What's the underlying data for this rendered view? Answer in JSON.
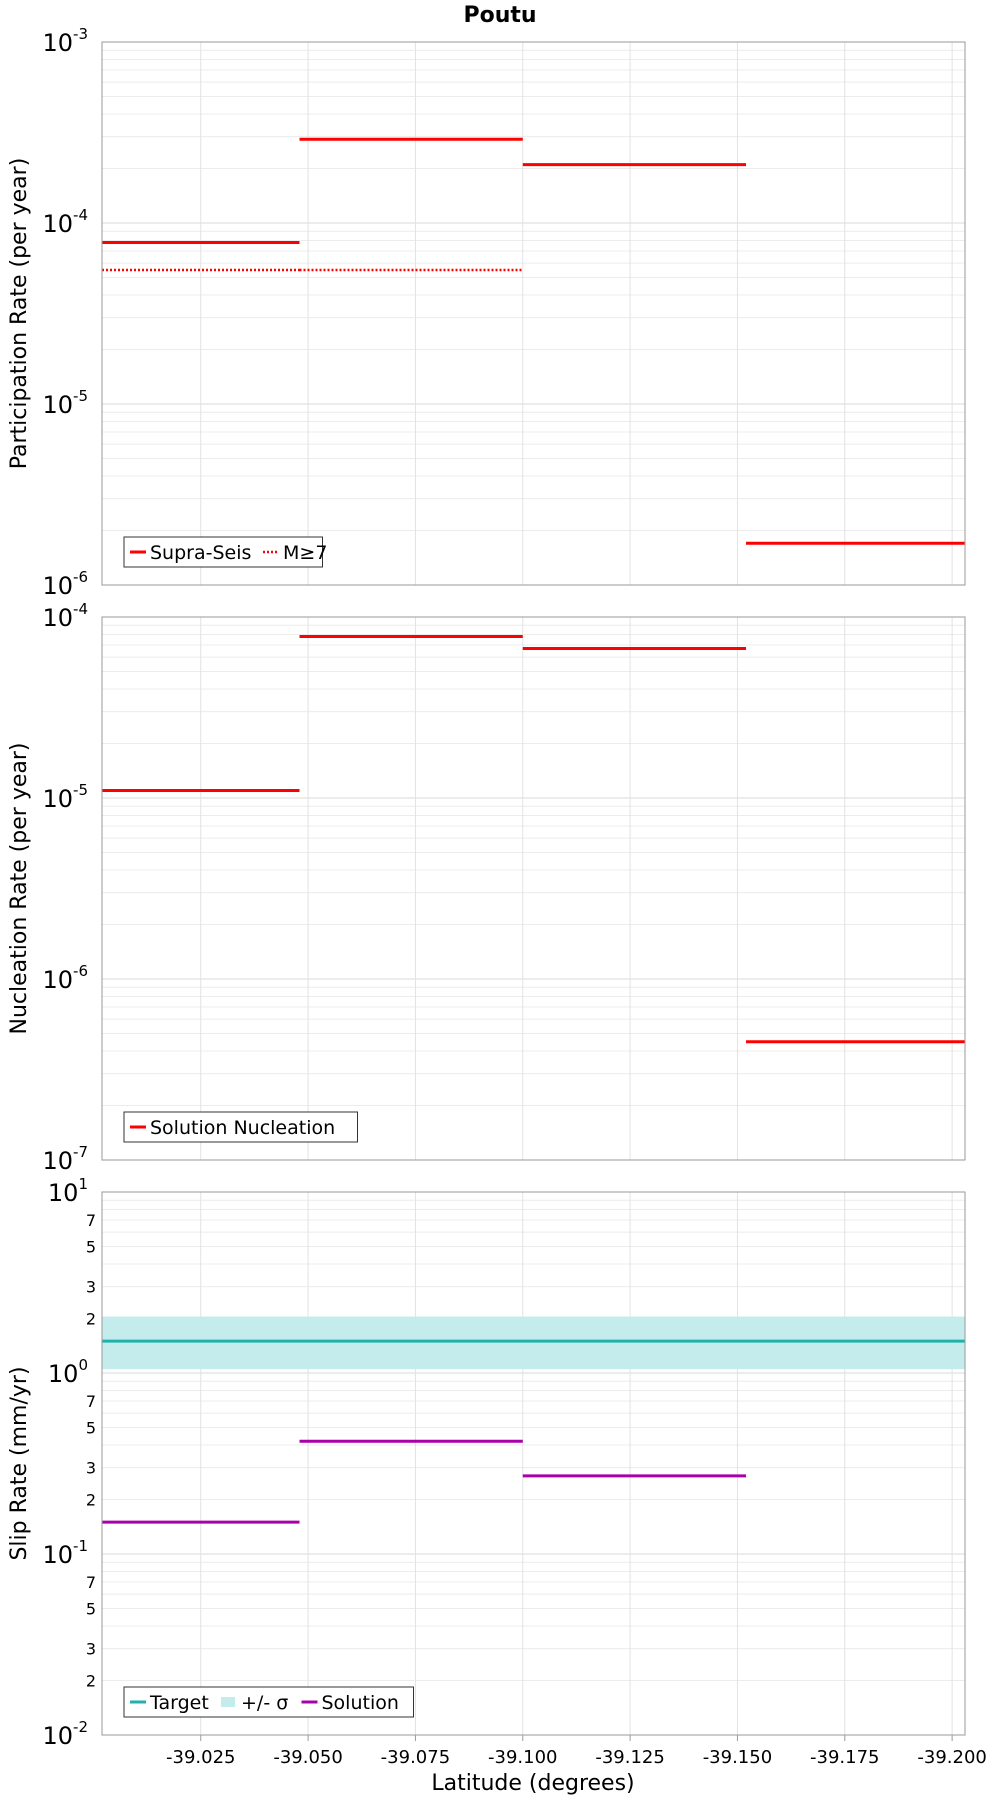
{
  "title": "Poutu",
  "xlabel": "Latitude (degrees)",
  "chart_data": [
    {
      "type": "line",
      "ylabel": "Participation Rate (per year)",
      "yscale": "log",
      "ylim": [
        1e-06,
        0.001
      ],
      "xlim": [
        -39.002,
        -39.203
      ],
      "decade_labels": [
        {
          "mant": "10",
          "exp": "-3"
        },
        {
          "mant": "10",
          "exp": "-4"
        },
        {
          "mant": "10",
          "exp": "-5"
        },
        {
          "mant": "10",
          "exp": "-6"
        }
      ],
      "minor_labels": [],
      "legend": {
        "position": "bottom-left",
        "items": [
          {
            "label": "Supra-Seis",
            "color": "#ff0000",
            "style": "solid"
          },
          {
            "label": "M≥7",
            "color": "#ff0000",
            "style": "dotted"
          }
        ]
      },
      "series": [
        {
          "name": "Supra-Seis",
          "color": "#ff0000",
          "style": "solid",
          "segments": [
            {
              "x": [
                -39.002,
                -39.048
              ],
              "y": 7.8e-05
            },
            {
              "x": [
                -39.048,
                -39.1
              ],
              "y": 0.00029
            },
            {
              "x": [
                -39.1,
                -39.152
              ],
              "y": 0.00021
            },
            {
              "x": [
                -39.152,
                -39.203
              ],
              "y": 1.7e-06
            }
          ]
        },
        {
          "name": "M≥7",
          "color": "#ff0000",
          "style": "dotted",
          "segments": [
            {
              "x": [
                -39.002,
                -39.048
              ],
              "y": 5.5e-05
            },
            {
              "x": [
                -39.048,
                -39.1
              ],
              "y": 5.5e-05
            }
          ]
        }
      ]
    },
    {
      "type": "line",
      "ylabel": "Nucleation Rate (per year)",
      "yscale": "log",
      "ylim": [
        1e-07,
        0.0001
      ],
      "xlim": [
        -39.002,
        -39.203
      ],
      "decade_labels": [
        {
          "mant": "10",
          "exp": "-4"
        },
        {
          "mant": "10",
          "exp": "-5"
        },
        {
          "mant": "10",
          "exp": "-6"
        },
        {
          "mant": "10",
          "exp": "-7"
        }
      ],
      "minor_labels": [],
      "legend": {
        "position": "bottom-left",
        "items": [
          {
            "label": "Solution Nucleation",
            "color": "#ff0000",
            "style": "solid"
          }
        ]
      },
      "series": [
        {
          "name": "Solution Nucleation",
          "color": "#ff0000",
          "style": "solid",
          "segments": [
            {
              "x": [
                -39.002,
                -39.048
              ],
              "y": 1.1e-05
            },
            {
              "x": [
                -39.048,
                -39.1
              ],
              "y": 7.8e-05
            },
            {
              "x": [
                -39.1,
                -39.152
              ],
              "y": 6.7e-05
            },
            {
              "x": [
                -39.152,
                -39.203
              ],
              "y": 4.5e-07
            }
          ]
        }
      ]
    },
    {
      "type": "line",
      "ylabel": "Slip Rate (mm/yr)",
      "yscale": "log",
      "ylim": [
        0.01,
        10
      ],
      "xlim": [
        -39.002,
        -39.203
      ],
      "decade_labels": [
        {
          "mant": "10",
          "exp": "1"
        },
        {
          "mant": "10",
          "exp": "0"
        },
        {
          "mant": "10",
          "exp": "-1"
        },
        {
          "mant": "10",
          "exp": "-2"
        }
      ],
      "minor_labels": [
        {
          "value": 7,
          "label": "7"
        },
        {
          "value": 5,
          "label": "5"
        },
        {
          "value": 3,
          "label": "3"
        },
        {
          "value": 2,
          "label": "2"
        },
        {
          "value": 0.7,
          "label": "7"
        },
        {
          "value": 0.5,
          "label": "5"
        },
        {
          "value": 0.3,
          "label": "3"
        },
        {
          "value": 0.2,
          "label": "2"
        },
        {
          "value": 0.07,
          "label": "7"
        },
        {
          "value": 0.05,
          "label": "5"
        },
        {
          "value": 0.03,
          "label": "3"
        },
        {
          "value": 0.02,
          "label": "2"
        }
      ],
      "band": {
        "name": "+/- σ",
        "color": "#c4ecec",
        "y_low": 1.05,
        "y_high": 2.05,
        "x": [
          -39.002,
          -39.203
        ]
      },
      "legend": {
        "position": "bottom-left",
        "items": [
          {
            "label": "Target",
            "color": "#20b2aa",
            "style": "solid"
          },
          {
            "label": "+/- σ",
            "color": "#c4ecec",
            "style": "band"
          },
          {
            "label": "Solution",
            "color": "#aa00aa",
            "style": "solid"
          }
        ]
      },
      "series": [
        {
          "name": "Target",
          "color": "#20b2aa",
          "style": "solid",
          "segments": [
            {
              "x": [
                -39.002,
                -39.203
              ],
              "y": 1.5
            }
          ]
        },
        {
          "name": "Solution",
          "color": "#aa00aa",
          "style": "solid",
          "segments": [
            {
              "x": [
                -39.002,
                -39.048
              ],
              "y": 0.15
            },
            {
              "x": [
                -39.048,
                -39.1
              ],
              "y": 0.42
            },
            {
              "x": [
                -39.1,
                -39.152
              ],
              "y": 0.27
            }
          ]
        }
      ]
    }
  ],
  "x_ticks": [
    {
      "value": -39.025,
      "label": "-39.025"
    },
    {
      "value": -39.05,
      "label": "-39.050"
    },
    {
      "value": -39.075,
      "label": "-39.075"
    },
    {
      "value": -39.1,
      "label": "-39.100"
    },
    {
      "value": -39.125,
      "label": "-39.125"
    },
    {
      "value": -39.15,
      "label": "-39.150"
    },
    {
      "value": -39.175,
      "label": "-39.175"
    },
    {
      "value": -39.2,
      "label": "-39.200"
    }
  ]
}
